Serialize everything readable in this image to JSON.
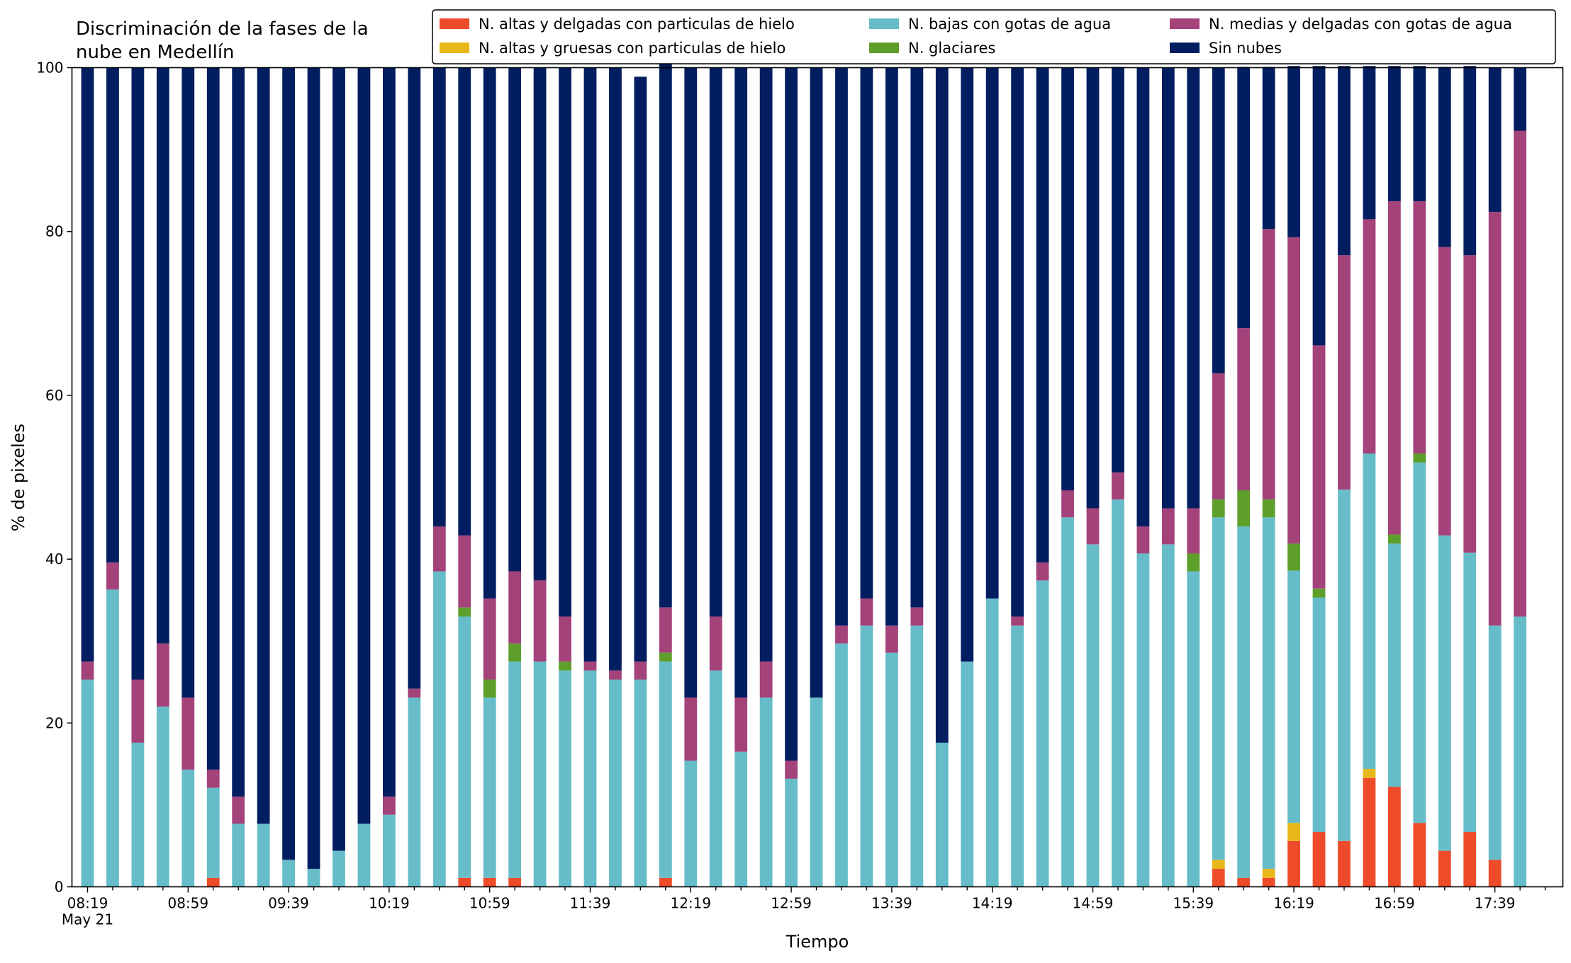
{
  "chart_data": {
    "type": "bar",
    "stacked": true,
    "title_lines": [
      "Discriminación de la fases de la",
      "nube en Medellín"
    ],
    "xlabel": "Tiempo",
    "ylabel": "% de pixeles",
    "ylim": [
      0,
      100
    ],
    "yticks": [
      "0",
      "20",
      "40",
      "60",
      "80",
      "100"
    ],
    "grid": false,
    "legend_position": "top-right",
    "xtick_labels": [
      "08:19",
      "08:59",
      "09:39",
      "10:19",
      "10:59",
      "11:39",
      "12:19",
      "12:59",
      "13:39",
      "14:19",
      "14:59",
      "15:39",
      "16:19",
      "16:59",
      "17:39"
    ],
    "xtick_sublabel": "May 21",
    "categories": [
      "08:19",
      "08:29",
      "08:39",
      "08:49",
      "08:59",
      "09:09",
      "09:19",
      "09:29",
      "09:39",
      "09:49",
      "09:59",
      "10:09",
      "10:19",
      "10:29",
      "10:39",
      "10:49",
      "10:59",
      "11:09",
      "11:19",
      "11:29",
      "11:39",
      "11:49",
      "11:59",
      "12:09",
      "12:19",
      "12:29",
      "12:39",
      "12:49",
      "12:59",
      "13:09",
      "13:19",
      "13:29",
      "13:39",
      "13:49",
      "13:59",
      "14:09",
      "14:19",
      "14:29",
      "14:39",
      "14:49",
      "14:59",
      "15:09",
      "15:19",
      "15:29",
      "15:39",
      "15:49",
      "15:59",
      "16:09",
      "16:19",
      "16:29",
      "16:39",
      "16:49",
      "16:59",
      "17:09",
      "17:19",
      "17:29",
      "17:39",
      "17:49"
    ],
    "series": [
      {
        "name": "N. altas y delgadas con particulas de hielo",
        "color": "#ee4b2b",
        "values": [
          0,
          0,
          0,
          0,
          0,
          1.1,
          0,
          0,
          0,
          0,
          0,
          0,
          0,
          0,
          0,
          1.1,
          1.1,
          1.1,
          0,
          0,
          0,
          0,
          0,
          1.1,
          0,
          0,
          0,
          0,
          0,
          0,
          0,
          0,
          0,
          0,
          0,
          0,
          0,
          0,
          0,
          0,
          0,
          0,
          0,
          0,
          0,
          2.2,
          1.1,
          1.1,
          5.6,
          6.7,
          5.6,
          13.3,
          12.2,
          7.8,
          4.4,
          6.7,
          3.3,
          0
        ]
      },
      {
        "name": "N. altas y gruesas con particulas de hielo",
        "color": "#e8b81a",
        "values": [
          0,
          0,
          0,
          0,
          0,
          0,
          0,
          0,
          0,
          0,
          0,
          0,
          0,
          0,
          0,
          0,
          0,
          0,
          0,
          0,
          0,
          0,
          0,
          0,
          0,
          0,
          0,
          0,
          0,
          0,
          0,
          0,
          0,
          0,
          0,
          0,
          0,
          0,
          0,
          0,
          0,
          0,
          0,
          0,
          0,
          1.1,
          0,
          1.1,
          2.2,
          0,
          0,
          1.1,
          0,
          0,
          0,
          0,
          0,
          0
        ]
      },
      {
        "name": "N. bajas con gotas de agua",
        "color": "#66bdc9",
        "values": [
          25.3,
          36.3,
          17.6,
          22,
          14.3,
          11,
          7.7,
          7.7,
          3.3,
          2.2,
          4.4,
          7.7,
          8.8,
          23.1,
          38.5,
          31.9,
          22,
          26.4,
          27.5,
          26.4,
          26.4,
          25.3,
          25.3,
          26.4,
          15.4,
          26.4,
          16.5,
          23.1,
          13.2,
          23.1,
          29.7,
          31.9,
          28.6,
          31.9,
          17.6,
          27.5,
          35.2,
          31.9,
          37.4,
          45.1,
          41.8,
          47.3,
          40.7,
          41.8,
          38.5,
          41.8,
          42.9,
          42.9,
          30.8,
          28.6,
          42.9,
          38.5,
          29.7,
          44,
          38.5,
          34.1,
          28.6,
          33
        ]
      },
      {
        "name": "N. glaciares",
        "color": "#5e9f2c",
        "values": [
          0,
          0,
          0,
          0,
          0,
          0,
          0,
          0,
          0,
          0,
          0,
          0,
          0,
          0,
          0,
          1.1,
          2.2,
          2.2,
          0,
          1.1,
          0,
          0,
          0,
          1.1,
          0,
          0,
          0,
          0,
          0,
          0,
          0,
          0,
          0,
          0,
          0,
          0,
          0,
          0,
          0,
          0,
          0,
          0,
          0,
          0,
          2.2,
          2.2,
          4.4,
          2.2,
          3.3,
          1.1,
          0,
          0,
          1.1,
          1.1,
          0,
          0,
          0,
          0
        ]
      },
      {
        "name": "N. medias y delgadas con gotas de agua",
        "color": "#a4427a",
        "values": [
          2.2,
          3.3,
          7.7,
          7.7,
          8.8,
          2.2,
          3.3,
          0,
          0,
          0,
          0,
          0,
          2.2,
          1.1,
          5.5,
          8.8,
          9.9,
          8.8,
          9.9,
          5.5,
          1.1,
          1.1,
          2.2,
          5.5,
          7.7,
          6.6,
          6.6,
          4.4,
          2.2,
          0,
          2.2,
          3.3,
          3.3,
          2.2,
          0,
          0,
          0,
          1.1,
          2.2,
          3.3,
          4.4,
          3.3,
          3.3,
          4.4,
          5.5,
          15.4,
          19.8,
          33,
          37.4,
          29.7,
          28.6,
          28.6,
          40.7,
          30.8,
          35.2,
          36.3,
          50.5,
          59.3
        ]
      },
      {
        "name": "Sin nubes",
        "color": "#021e61",
        "values": [
          72.5,
          60.4,
          74.7,
          70.3,
          76.9,
          85.7,
          89,
          92.3,
          96.7,
          97.8,
          95.6,
          92.3,
          89,
          75.8,
          56,
          57.1,
          64.8,
          61.5,
          62.6,
          67,
          72.5,
          73.6,
          71.4,
          67,
          76.9,
          67,
          76.9,
          72.5,
          84.6,
          76.9,
          68.1,
          64.8,
          68.1,
          65.9,
          82.4,
          72.5,
          64.8,
          67,
          60.4,
          51.6,
          53.8,
          49.5,
          56,
          53.8,
          53.8,
          37.3,
          31.9,
          19.8,
          20.9,
          34.1,
          23.1,
          18.7,
          16.5,
          16.5,
          22,
          23.1,
          17.6,
          7.7
        ]
      }
    ]
  }
}
